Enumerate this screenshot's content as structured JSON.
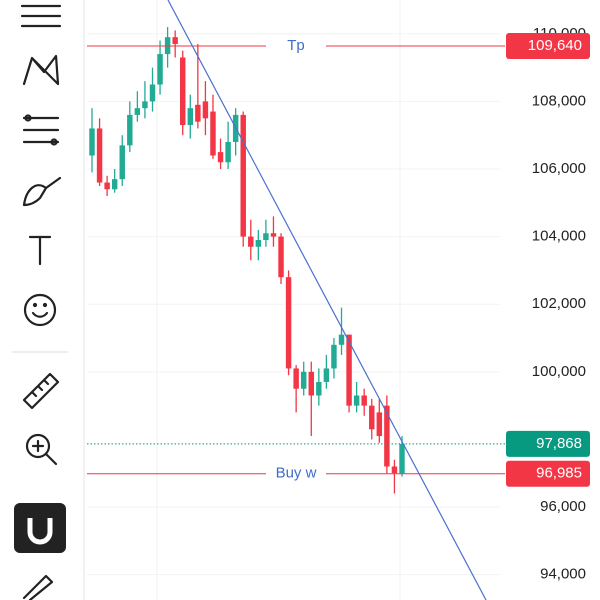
{
  "chart_data": {
    "type": "candlestick",
    "ylim": [
      93250,
      111000
    ],
    "yticks": [
      {
        "value": 94000,
        "label": "94,000"
      },
      {
        "value": 96000,
        "label": "96,000"
      },
      {
        "value": 100000,
        "label": "100,000"
      },
      {
        "value": 102000,
        "label": "102,000"
      },
      {
        "value": 104000,
        "label": "104,000"
      },
      {
        "value": 106000,
        "label": "106,000"
      },
      {
        "value": 108000,
        "label": "108,000"
      },
      {
        "value": 110000,
        "label": "110,000"
      }
    ],
    "up_color": "#22ab94",
    "down_color": "#f23645",
    "open": [
      106400,
      107200,
      105600,
      105400,
      105700,
      106700,
      107600,
      107800,
      108000,
      108500,
      109400,
      109900,
      109300,
      107300,
      107900,
      108000,
      107700,
      106500,
      106200,
      106800,
      107600,
      104000,
      103700,
      103900,
      104100,
      104000,
      102800,
      100100,
      99500,
      100000,
      99300,
      99700,
      100100,
      100800,
      101100,
      99000,
      99300,
      99000,
      98800,
      99000,
      97200,
      97000
    ],
    "high": [
      107800,
      107500,
      105800,
      106000,
      107000,
      108000,
      108300,
      108600,
      109000,
      109800,
      110200,
      110100,
      109500,
      108200,
      109700,
      108600,
      108200,
      106900,
      107400,
      107800,
      107700,
      104500,
      104200,
      104500,
      104600,
      104100,
      103000,
      100200,
      100300,
      100300,
      100100,
      100500,
      101000,
      101900,
      101100,
      99700,
      99500,
      99200,
      99200,
      99300,
      97400,
      98100
    ],
    "low": [
      105900,
      105500,
      105200,
      105300,
      105500,
      106500,
      107400,
      107500,
      107700,
      108200,
      109000,
      109300,
      107000,
      106900,
      107200,
      107000,
      106300,
      106000,
      106000,
      106400,
      103700,
      103300,
      103300,
      103700,
      103700,
      102600,
      99900,
      98800,
      99300,
      98100,
      99000,
      99500,
      99800,
      100500,
      98800,
      98800,
      98700,
      98000,
      97900,
      97000,
      96400,
      96900
    ],
    "close": [
      107200,
      105600,
      105400,
      105700,
      106700,
      107600,
      107800,
      108000,
      108500,
      109400,
      109900,
      109700,
      107300,
      107800,
      107400,
      107500,
      106400,
      106200,
      106800,
      107600,
      104000,
      103700,
      103900,
      104100,
      104000,
      102800,
      100100,
      99500,
      100000,
      99300,
      99700,
      100100,
      100800,
      101100,
      99000,
      99300,
      99000,
      98300,
      98100,
      97200,
      97000,
      97868
    ],
    "price_lines": [
      {
        "name": "Tp",
        "value": 109640,
        "value_label": "109,640",
        "color": "#f23645",
        "style": "solid"
      },
      {
        "value": 97868,
        "value_label": "97,868",
        "color": "#089981",
        "style": "dotted"
      },
      {
        "name": "Buy w",
        "value": 96985,
        "value_label": "96,985",
        "color": "#f23645",
        "style": "solid"
      }
    ]
  }
}
